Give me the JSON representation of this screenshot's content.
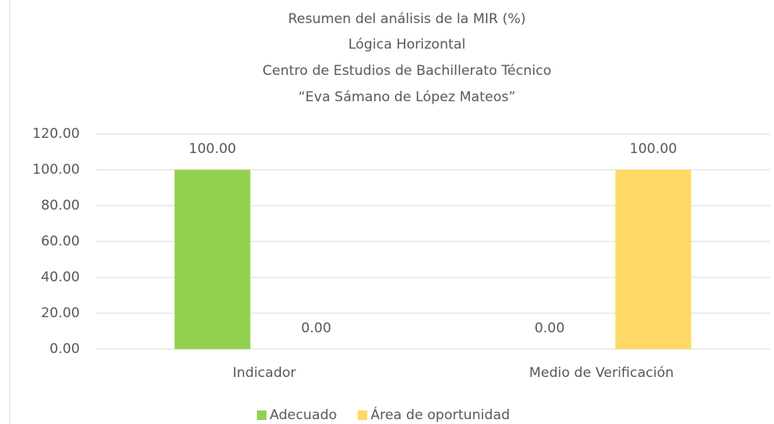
{
  "chart_data": {
    "type": "bar",
    "title": [
      "Resumen del análisis de la MIR (%)",
      "Lógica Horizontal",
      "Centro de Estudios de Bachillerato Técnico",
      "“Eva Sámano de López Mateos”"
    ],
    "categories": [
      "Indicador",
      "Medio de Verificación"
    ],
    "series": [
      {
        "name": "Adecuado",
        "color": "#92d050",
        "values": [
          100,
          0
        ],
        "value_labels": [
          "100.00",
          "0.00"
        ]
      },
      {
        "name": "Área de oportunidad",
        "color": "#ffd966",
        "values": [
          0,
          100
        ],
        "value_labels": [
          "0.00",
          "100.00"
        ]
      }
    ],
    "ylim": [
      0,
      120
    ],
    "yticks": [
      {
        "value": 0,
        "label": "0.00"
      },
      {
        "value": 20,
        "label": "20.00"
      },
      {
        "value": 40,
        "label": "40.00"
      },
      {
        "value": 60,
        "label": "60.00"
      },
      {
        "value": 80,
        "label": "80.00"
      },
      {
        "value": 100,
        "label": "100.00"
      },
      {
        "value": 120,
        "label": "120.00"
      }
    ],
    "grid": true,
    "legend": "bottom"
  }
}
